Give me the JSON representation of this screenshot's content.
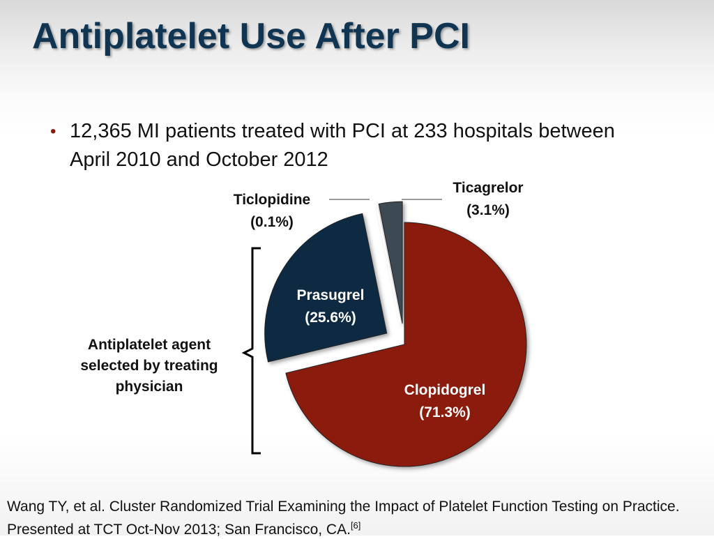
{
  "title": "Antiplatelet Use After PCI",
  "bullet": "12,365 MI patients treated with PCI at 233 hospitals between April 2010 and October 2012",
  "annotation": "Antiplatelet agent selected by treating physician",
  "citation": {
    "text": "Wang TY, et al. Cluster Randomized Trial Examining the Impact of Platelet Function Testing on Practice. Presented at TCT Oct-Nov 2013; San Francisco, CA.",
    "ref": "[6]"
  },
  "chart_data": {
    "type": "pie",
    "slices": [
      {
        "name": "Clopidogrel",
        "value": 71.3,
        "label": "(71.3%)",
        "color": "#8b1a0a",
        "exploded": false
      },
      {
        "name": "Prasugrel",
        "value": 25.6,
        "label": "(25.6%)",
        "color": "#0e2a43",
        "exploded": true
      },
      {
        "name": "Ticlopidine",
        "value": 0.1,
        "label": "(0.1%)",
        "color": "#1a1a1a",
        "exploded": true
      },
      {
        "name": "Ticagrelor",
        "value": 3.1,
        "label": "(3.1%)",
        "color": "#3c4852",
        "exploded": true
      }
    ]
  }
}
